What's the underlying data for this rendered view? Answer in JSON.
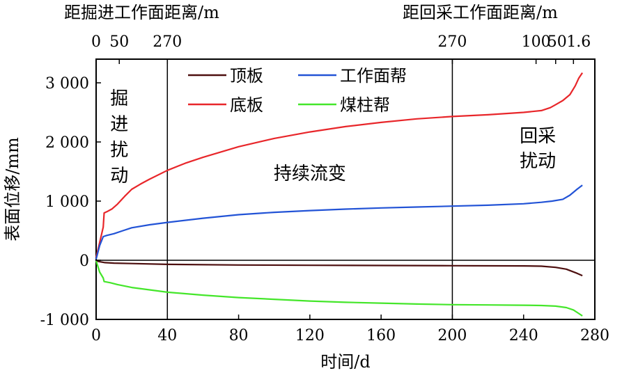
{
  "chart_data": {
    "type": "line",
    "xlabel": "时间/d",
    "ylabel": "表面位移/mm",
    "xlim": [
      0,
      280
    ],
    "ylim": [
      -1000,
      3400
    ],
    "x_ticks": [
      0,
      40,
      80,
      120,
      160,
      200,
      240,
      280
    ],
    "y_ticks": [
      {
        "value": 3000,
        "label": "3 000"
      },
      {
        "value": 2000,
        "label": "2 000"
      },
      {
        "value": 1000,
        "label": "1 000"
      },
      {
        "value": 0,
        "label": "0"
      },
      {
        "value": -1000,
        "label": "-1 000"
      }
    ],
    "top_axis_left": {
      "label": "距掘进工作面距离/m",
      "ticks": [
        {
          "x": 0,
          "label": "0"
        },
        {
          "x": 13,
          "label": "50"
        },
        {
          "x": 40,
          "label": "270"
        }
      ]
    },
    "top_axis_right": {
      "label": "距回采工作面距离/m",
      "ticks": [
        {
          "x": 200,
          "label": "270"
        },
        {
          "x": 247,
          "label": "100"
        },
        {
          "x": 258,
          "label": "50"
        },
        {
          "x": 268,
          "label": "1.6"
        }
      ]
    },
    "vlines": [
      40,
      200
    ],
    "legend": {
      "placement": "top-center",
      "columns": 2
    },
    "annotations": [
      {
        "text": [
          "掘",
          "进",
          "扰",
          "动"
        ],
        "x": 13,
        "y": 2600
      },
      {
        "text": [
          "持续流变"
        ],
        "x": 120,
        "y": 1480
      },
      {
        "text": [
          "回采",
          "扰动"
        ],
        "x": 248,
        "y": 1900
      }
    ],
    "series": [
      {
        "name": "顶板",
        "color": "#4d0f0f",
        "x": [
          0,
          2,
          5,
          10,
          20,
          40,
          80,
          120,
          160,
          200,
          240,
          250,
          258,
          264,
          270,
          273
        ],
        "y": [
          -10,
          -25,
          -40,
          -48,
          -55,
          -70,
          -80,
          -85,
          -88,
          -92,
          -95,
          -100,
          -120,
          -150,
          -220,
          -260
        ]
      },
      {
        "name": "底板",
        "color": "#e8262a",
        "x": [
          0,
          2,
          4,
          4.5,
          6,
          9,
          12,
          16,
          20,
          25,
          30,
          40,
          50,
          60,
          80,
          100,
          120,
          140,
          160,
          180,
          200,
          220,
          240,
          250,
          255,
          258,
          262,
          266,
          269,
          271,
          273
        ],
        "y": [
          50,
          300,
          560,
          800,
          820,
          870,
          950,
          1080,
          1200,
          1290,
          1370,
          1520,
          1640,
          1740,
          1920,
          2060,
          2170,
          2260,
          2330,
          2390,
          2430,
          2460,
          2500,
          2530,
          2580,
          2630,
          2700,
          2800,
          2950,
          3080,
          3170
        ]
      },
      {
        "name": "工作面帮",
        "color": "#2253d6",
        "x": [
          0,
          2,
          4,
          6,
          10,
          15,
          20,
          30,
          40,
          60,
          80,
          100,
          120,
          140,
          160,
          180,
          200,
          220,
          240,
          250,
          256,
          262,
          266,
          270,
          273
        ],
        "y": [
          20,
          250,
          400,
          420,
          450,
          500,
          550,
          600,
          640,
          710,
          770,
          810,
          840,
          865,
          885,
          900,
          915,
          930,
          955,
          980,
          1000,
          1030,
          1100,
          1200,
          1270
        ]
      },
      {
        "name": "煤柱帮",
        "color": "#44e62a",
        "x": [
          0,
          2,
          4,
          4.5,
          8,
          12,
          20,
          30,
          40,
          60,
          80,
          100,
          120,
          140,
          160,
          180,
          200,
          220,
          240,
          250,
          258,
          264,
          268,
          271,
          273
        ],
        "y": [
          -10,
          -200,
          -300,
          -360,
          -380,
          -410,
          -460,
          -500,
          -540,
          -590,
          -630,
          -660,
          -690,
          -710,
          -725,
          -740,
          -750,
          -755,
          -760,
          -765,
          -775,
          -800,
          -840,
          -900,
          -940
        ]
      }
    ]
  }
}
